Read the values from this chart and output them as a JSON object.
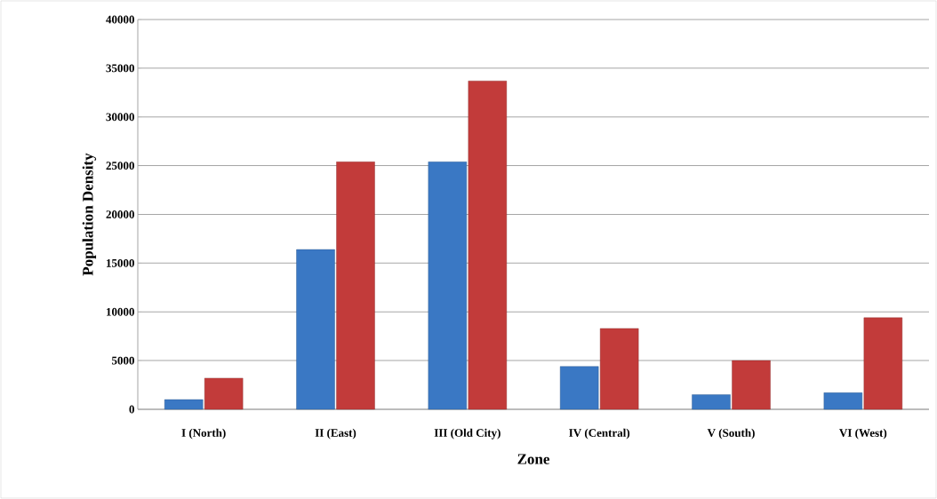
{
  "chart_data": {
    "type": "bar",
    "xlabel": "Zone",
    "ylabel": "Population Density",
    "categories": [
      "I (North)",
      "II (East)",
      "III (Old City)",
      "IV (Central)",
      "V (South)",
      "VI (West)"
    ],
    "series": [
      {
        "color": "#3a78c4",
        "values": [
          1000,
          16400,
          25400,
          4400,
          1500,
          1700
        ]
      },
      {
        "color": "#c23b3a",
        "values": [
          3200,
          25400,
          33700,
          8300,
          5000,
          9400
        ]
      }
    ],
    "ylim": [
      0,
      40000
    ],
    "yticks": [
      0,
      5000,
      10000,
      15000,
      20000,
      25000,
      30000,
      35000,
      40000
    ],
    "grid": "y"
  }
}
